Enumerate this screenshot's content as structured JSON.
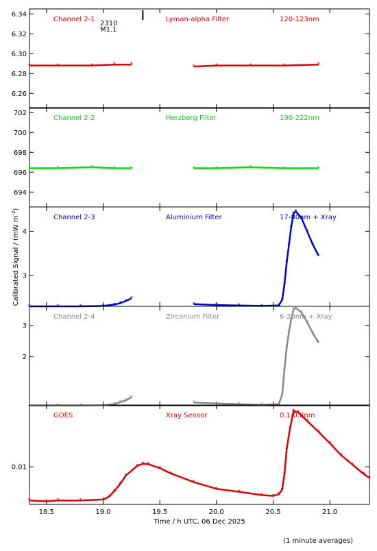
{
  "chart_data": {
    "type": "scatter",
    "xlabel": "Time / h UTC, 06 Dec 2025",
    "ylabel": "Calibrated Signal / (mW m",
    "ylabel_superscript": "-2",
    "ylabel_suffix": ")",
    "footnote": "(1 minute averages)",
    "xlim": [
      18.35,
      21.35
    ],
    "xticks": [
      "18.5",
      "19.0",
      "19.5",
      "20.0",
      "20.5",
      "21.0"
    ],
    "annotation": {
      "line1": "2310",
      "line2": "M1.1",
      "x": 19.35
    },
    "panels": [
      {
        "channel": "Channel 2-1",
        "filter": "Lyman-alpha Filter",
        "band": "120-123nm",
        "color": "#dd0000",
        "scale": "linear",
        "ylim": [
          6.245,
          6.345
        ],
        "yticks": [
          "6.26",
          "6.28",
          "6.30",
          "6.32",
          "6.34"
        ],
        "series": [
          {
            "x": [
              18.35,
              18.6,
              18.9,
              19.1,
              19.25
            ],
            "y": [
              6.288,
              6.288,
              6.288,
              6.289,
              6.289
            ]
          },
          {
            "x": [
              19.8,
              20.0,
              20.3,
              20.6,
              20.9
            ],
            "y": [
              6.287,
              6.288,
              6.288,
              6.288,
              6.289
            ]
          }
        ]
      },
      {
        "channel": "Channel 2-2",
        "filter": "Herzberg Filter",
        "band": "190-222nm",
        "color": "#00dd00",
        "scale": "linear",
        "ylim": [
          692.5,
          702.5
        ],
        "yticks": [
          "694",
          "696",
          "698",
          "700",
          "702"
        ],
        "series": [
          {
            "x": [
              18.35,
              18.6,
              18.9,
              19.1,
              19.25
            ],
            "y": [
              696.4,
              696.4,
              696.5,
              696.4,
              696.4
            ]
          },
          {
            "x": [
              19.8,
              20.0,
              20.3,
              20.6,
              20.9
            ],
            "y": [
              696.4,
              696.4,
              696.5,
              696.4,
              696.4
            ]
          }
        ]
      },
      {
        "channel": "Channel 2-3",
        "filter": "Aluminium Filter",
        "band": "17-80nm + Xray",
        "color": "#0000cc",
        "scale": "linear",
        "ylim": [
          2.3,
          4.55
        ],
        "yticks": [
          "3",
          "4"
        ],
        "series": [
          {
            "x": [
              18.35,
              18.6,
              18.8,
              19.0,
              19.1,
              19.15,
              19.2,
              19.25
            ],
            "y": [
              2.3,
              2.3,
              2.3,
              2.31,
              2.34,
              2.37,
              2.42,
              2.48
            ]
          },
          {
            "x": [
              19.8,
              20.0,
              20.2,
              20.4,
              20.55,
              20.58,
              20.6,
              20.62,
              20.64,
              20.66,
              20.68,
              20.7,
              20.75,
              20.8,
              20.85,
              20.9
            ],
            "y": [
              2.35,
              2.33,
              2.32,
              2.31,
              2.32,
              2.45,
              2.8,
              3.3,
              3.7,
              4.1,
              4.4,
              4.45,
              4.3,
              4.0,
              3.7,
              3.45
            ]
          }
        ]
      },
      {
        "channel": "Channel 2-4",
        "filter": "Zirconium Filter",
        "band": "6-20nm + Xray",
        "color": "#888888",
        "scale": "linear",
        "ylim": [
          0.45,
          3.6
        ],
        "yticks": [
          "2",
          "3"
        ],
        "series": [
          {
            "x": [
              18.35,
              18.6,
              18.8,
              19.0,
              19.1,
              19.15,
              19.2,
              19.25
            ],
            "y": [
              0.45,
              0.45,
              0.45,
              0.46,
              0.5,
              0.56,
              0.62,
              0.72
            ]
          },
          {
            "x": [
              19.8,
              20.0,
              20.2,
              20.4,
              20.55,
              20.58,
              20.6,
              20.62,
              20.64,
              20.66,
              20.68,
              20.7,
              20.75,
              20.8,
              20.85,
              20.9
            ],
            "y": [
              0.55,
              0.52,
              0.5,
              0.48,
              0.5,
              0.8,
              1.6,
              2.3,
              2.8,
              3.2,
              3.5,
              3.55,
              3.4,
              3.1,
              2.75,
              2.45
            ]
          }
        ]
      },
      {
        "channel": "GOES",
        "filter": "Xray Sensor",
        "band": "0.1-0.8nm",
        "color": "#dd0000",
        "scale": "log",
        "ylim": [
          0.0043,
          0.04
        ],
        "yticks": [
          "0.01"
        ],
        "ytick_values": [
          0.01
        ],
        "series": [
          {
            "x": [
              18.35,
              18.5,
              18.6,
              18.8,
              19.0,
              19.05,
              19.1,
              19.15,
              19.2,
              19.3,
              19.35,
              19.4,
              19.5,
              19.6,
              19.8,
              20.0,
              20.2,
              20.4,
              20.5,
              20.55,
              20.58,
              20.6,
              20.62,
              20.65,
              20.68,
              20.72,
              20.8,
              20.9,
              21.0,
              21.1,
              21.2,
              21.3,
              21.35
            ],
            "y": [
              0.0047,
              0.0046,
              0.0047,
              0.0047,
              0.0048,
              0.0051,
              0.0058,
              0.0068,
              0.0082,
              0.0102,
              0.0107,
              0.0106,
              0.0097,
              0.0086,
              0.0071,
              0.0061,
              0.0057,
              0.0053,
              0.0052,
              0.0054,
              0.006,
              0.0085,
              0.015,
              0.024,
              0.035,
              0.034,
              0.028,
              0.022,
              0.017,
              0.013,
              0.0105,
              0.0085,
              0.0078
            ]
          }
        ]
      }
    ]
  }
}
